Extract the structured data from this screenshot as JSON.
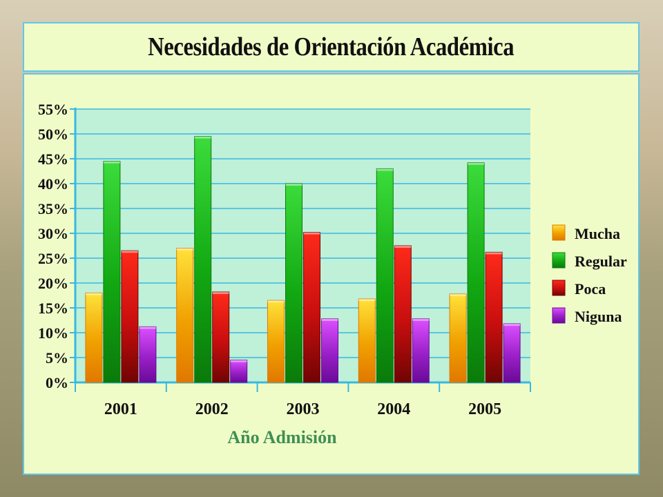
{
  "colors": {
    "Mucha": "#f5b800",
    "Regular": "#1fb81f",
    "Poca": "#c81010",
    "Niguna": "#9a20c8",
    "plot_bg": "#bff0d8",
    "grid": "#38b8e0"
  },
  "chart_data": {
    "type": "bar",
    "title": "Necesidades de Orientación Académica",
    "xlabel": "Año Admisión",
    "ylabel": "",
    "categories": [
      "2001",
      "2002",
      "2003",
      "2004",
      "2005"
    ],
    "ylim": [
      0,
      55
    ],
    "yticks": [
      "0%",
      "5%",
      "10%",
      "15%",
      "20%",
      "25%",
      "30%",
      "35%",
      "40%",
      "45%",
      "50%",
      "55%"
    ],
    "grid": true,
    "legend_position": "right",
    "series": [
      {
        "name": "Mucha",
        "values": [
          18,
          27,
          16.5,
          16.8,
          17.8
        ]
      },
      {
        "name": "Regular",
        "values": [
          44.5,
          49.5,
          40,
          43,
          44.2
        ]
      },
      {
        "name": "Poca",
        "values": [
          26.5,
          18.2,
          30.2,
          27.5,
          26.2
        ]
      },
      {
        "name": "Niguna",
        "values": [
          11.2,
          4.5,
          12.8,
          12.8,
          11.8
        ]
      }
    ]
  }
}
